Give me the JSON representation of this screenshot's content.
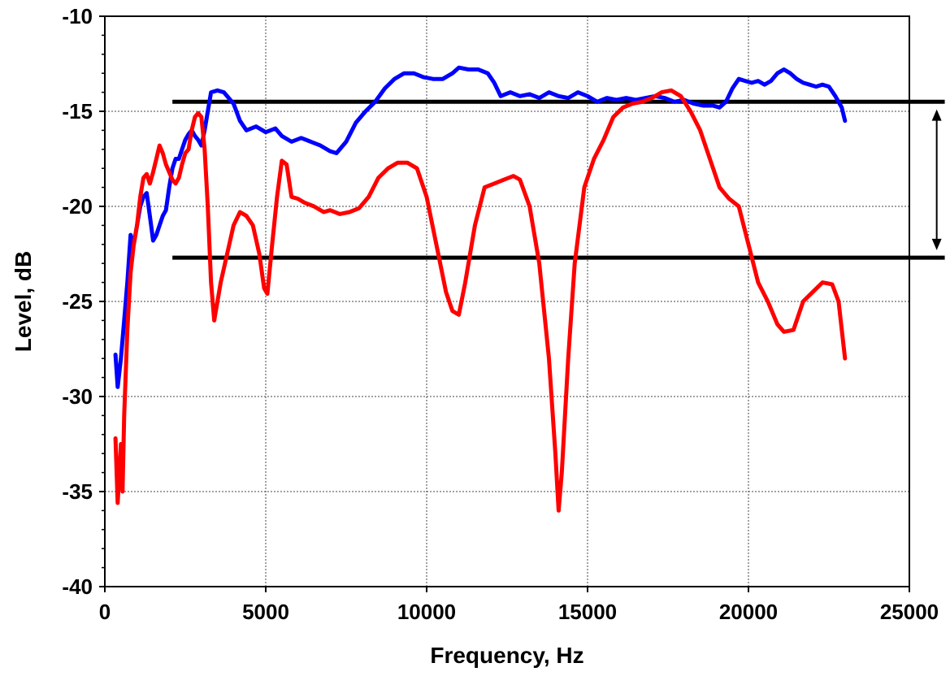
{
  "chart_data": {
    "type": "line",
    "title": "",
    "xlabel": "Frequency, Hz",
    "ylabel": "Level, dB",
    "xlim": [
      0,
      25000
    ],
    "ylim": [
      -40,
      -10
    ],
    "x_ticks": [
      0,
      5000,
      10000,
      15000,
      20000,
      25000
    ],
    "y_ticks": [
      -10,
      -15,
      -20,
      -25,
      -30,
      -35,
      -40
    ],
    "x_tick_labels": [
      "0",
      "5000",
      "10000",
      "15000",
      "20000",
      "25000"
    ],
    "y_tick_labels": [
      "-10",
      "-15",
      "-20",
      "-25",
      "-30",
      "-35",
      "-40"
    ],
    "grid": true,
    "legend": "none",
    "series": [
      {
        "color": "#0000ff",
        "points": [
          [
            330,
            -27.8
          ],
          [
            400,
            -29.5
          ],
          [
            500,
            -28.0
          ],
          [
            600,
            -26.0
          ],
          [
            700,
            -24.0
          ],
          [
            800,
            -21.5
          ],
          [
            900,
            -22.0
          ],
          [
            1000,
            -21.0
          ],
          [
            1100,
            -20.0
          ],
          [
            1200,
            -19.5
          ],
          [
            1300,
            -19.3
          ],
          [
            1400,
            -20.5
          ],
          [
            1500,
            -21.8
          ],
          [
            1600,
            -21.5
          ],
          [
            1700,
            -21.0
          ],
          [
            1800,
            -20.5
          ],
          [
            1900,
            -20.2
          ],
          [
            2000,
            -19.0
          ],
          [
            2100,
            -18.0
          ],
          [
            2200,
            -17.5
          ],
          [
            2300,
            -17.5
          ],
          [
            2400,
            -17.0
          ],
          [
            2500,
            -16.5
          ],
          [
            2600,
            -16.2
          ],
          [
            2700,
            -16.0
          ],
          [
            2800,
            -16.3
          ],
          [
            2900,
            -16.5
          ],
          [
            3000,
            -16.8
          ],
          [
            3100,
            -16.0
          ],
          [
            3200,
            -15.0
          ],
          [
            3300,
            -14.0
          ],
          [
            3500,
            -13.9
          ],
          [
            3700,
            -14.0
          ],
          [
            4000,
            -14.6
          ],
          [
            4200,
            -15.5
          ],
          [
            4400,
            -16.0
          ],
          [
            4700,
            -15.8
          ],
          [
            5000,
            -16.1
          ],
          [
            5300,
            -15.9
          ],
          [
            5500,
            -16.3
          ],
          [
            5800,
            -16.6
          ],
          [
            6100,
            -16.4
          ],
          [
            6400,
            -16.6
          ],
          [
            6700,
            -16.8
          ],
          [
            7000,
            -17.1
          ],
          [
            7200,
            -17.2
          ],
          [
            7500,
            -16.6
          ],
          [
            7800,
            -15.6
          ],
          [
            8100,
            -15.0
          ],
          [
            8400,
            -14.5
          ],
          [
            8700,
            -13.8
          ],
          [
            9000,
            -13.3
          ],
          [
            9300,
            -13.0
          ],
          [
            9600,
            -13.0
          ],
          [
            9900,
            -13.2
          ],
          [
            10200,
            -13.3
          ],
          [
            10500,
            -13.3
          ],
          [
            10800,
            -13.0
          ],
          [
            11000,
            -12.7
          ],
          [
            11300,
            -12.8
          ],
          [
            11600,
            -12.8
          ],
          [
            11900,
            -13.0
          ],
          [
            12100,
            -13.5
          ],
          [
            12300,
            -14.2
          ],
          [
            12600,
            -14.0
          ],
          [
            12900,
            -14.2
          ],
          [
            13200,
            -14.1
          ],
          [
            13500,
            -14.3
          ],
          [
            13800,
            -14.0
          ],
          [
            14100,
            -14.2
          ],
          [
            14400,
            -14.3
          ],
          [
            14700,
            -14.0
          ],
          [
            15000,
            -14.2
          ],
          [
            15300,
            -14.5
          ],
          [
            15600,
            -14.3
          ],
          [
            15900,
            -14.4
          ],
          [
            16200,
            -14.3
          ],
          [
            16500,
            -14.4
          ],
          [
            16800,
            -14.3
          ],
          [
            17100,
            -14.2
          ],
          [
            17400,
            -14.3
          ],
          [
            17700,
            -14.5
          ],
          [
            18000,
            -14.4
          ],
          [
            18300,
            -14.6
          ],
          [
            18600,
            -14.7
          ],
          [
            18900,
            -14.7
          ],
          [
            19100,
            -14.8
          ],
          [
            19300,
            -14.5
          ],
          [
            19500,
            -13.8
          ],
          [
            19700,
            -13.3
          ],
          [
            19900,
            -13.4
          ],
          [
            20100,
            -13.5
          ],
          [
            20300,
            -13.4
          ],
          [
            20500,
            -13.6
          ],
          [
            20700,
            -13.4
          ],
          [
            20900,
            -13.0
          ],
          [
            21100,
            -12.8
          ],
          [
            21300,
            -13.0
          ],
          [
            21500,
            -13.3
          ],
          [
            21700,
            -13.5
          ],
          [
            21900,
            -13.6
          ],
          [
            22100,
            -13.7
          ],
          [
            22300,
            -13.6
          ],
          [
            22500,
            -13.7
          ],
          [
            22700,
            -14.2
          ],
          [
            22900,
            -14.8
          ],
          [
            23000,
            -15.5
          ]
        ]
      },
      {
        "color": "#ff0000",
        "points": [
          [
            330,
            -32.2
          ],
          [
            400,
            -35.6
          ],
          [
            500,
            -32.5
          ],
          [
            550,
            -35.0
          ],
          [
            600,
            -31.0
          ],
          [
            700,
            -26.5
          ],
          [
            800,
            -23.5
          ],
          [
            900,
            -22.0
          ],
          [
            1000,
            -21.0
          ],
          [
            1100,
            -19.5
          ],
          [
            1200,
            -18.5
          ],
          [
            1300,
            -18.3
          ],
          [
            1400,
            -18.8
          ],
          [
            1500,
            -18.2
          ],
          [
            1600,
            -17.5
          ],
          [
            1700,
            -16.8
          ],
          [
            1800,
            -17.2
          ],
          [
            1900,
            -17.8
          ],
          [
            2000,
            -18.2
          ],
          [
            2100,
            -18.6
          ],
          [
            2200,
            -18.8
          ],
          [
            2300,
            -18.5
          ],
          [
            2400,
            -17.8
          ],
          [
            2500,
            -17.2
          ],
          [
            2600,
            -17.0
          ],
          [
            2700,
            -16.0
          ],
          [
            2800,
            -15.3
          ],
          [
            2900,
            -15.1
          ],
          [
            3000,
            -15.3
          ],
          [
            3100,
            -17.0
          ],
          [
            3200,
            -20.0
          ],
          [
            3300,
            -24.0
          ],
          [
            3400,
            -26.0
          ],
          [
            3500,
            -25.0
          ],
          [
            3600,
            -24.0
          ],
          [
            3800,
            -22.5
          ],
          [
            4000,
            -21.0
          ],
          [
            4200,
            -20.3
          ],
          [
            4400,
            -20.5
          ],
          [
            4600,
            -21.0
          ],
          [
            4800,
            -22.5
          ],
          [
            4950,
            -24.3
          ],
          [
            5050,
            -24.6
          ],
          [
            5200,
            -22.0
          ],
          [
            5350,
            -19.5
          ],
          [
            5500,
            -17.6
          ],
          [
            5650,
            -17.8
          ],
          [
            5800,
            -19.5
          ],
          [
            6000,
            -19.6
          ],
          [
            6200,
            -19.8
          ],
          [
            6500,
            -20.0
          ],
          [
            6800,
            -20.3
          ],
          [
            7000,
            -20.2
          ],
          [
            7300,
            -20.4
          ],
          [
            7600,
            -20.3
          ],
          [
            7900,
            -20.1
          ],
          [
            8200,
            -19.5
          ],
          [
            8500,
            -18.5
          ],
          [
            8800,
            -18.0
          ],
          [
            9100,
            -17.7
          ],
          [
            9400,
            -17.7
          ],
          [
            9700,
            -18.0
          ],
          [
            10000,
            -19.5
          ],
          [
            10300,
            -22.0
          ],
          [
            10600,
            -24.5
          ],
          [
            10800,
            -25.5
          ],
          [
            11000,
            -25.7
          ],
          [
            11200,
            -24.0
          ],
          [
            11500,
            -21.0
          ],
          [
            11800,
            -19.0
          ],
          [
            12100,
            -18.8
          ],
          [
            12400,
            -18.6
          ],
          [
            12700,
            -18.4
          ],
          [
            12900,
            -18.6
          ],
          [
            13200,
            -20.0
          ],
          [
            13500,
            -23.0
          ],
          [
            13800,
            -28.0
          ],
          [
            14000,
            -33.0
          ],
          [
            14100,
            -36.0
          ],
          [
            14200,
            -34.0
          ],
          [
            14400,
            -28.0
          ],
          [
            14600,
            -23.0
          ],
          [
            14900,
            -19.0
          ],
          [
            15200,
            -17.5
          ],
          [
            15500,
            -16.5
          ],
          [
            15800,
            -15.3
          ],
          [
            16100,
            -14.8
          ],
          [
            16400,
            -14.6
          ],
          [
            16700,
            -14.5
          ],
          [
            17000,
            -14.3
          ],
          [
            17300,
            -14.0
          ],
          [
            17600,
            -13.9
          ],
          [
            17900,
            -14.2
          ],
          [
            18200,
            -15.0
          ],
          [
            18500,
            -16.0
          ],
          [
            18800,
            -17.5
          ],
          [
            19100,
            -19.0
          ],
          [
            19400,
            -19.6
          ],
          [
            19700,
            -20.0
          ],
          [
            20000,
            -22.0
          ],
          [
            20300,
            -24.0
          ],
          [
            20600,
            -25.0
          ],
          [
            20900,
            -26.2
          ],
          [
            21100,
            -26.6
          ],
          [
            21400,
            -26.5
          ],
          [
            21700,
            -25.0
          ],
          [
            22000,
            -24.5
          ],
          [
            22300,
            -24.0
          ],
          [
            22600,
            -24.1
          ],
          [
            22800,
            -25.0
          ],
          [
            23000,
            -28.0
          ]
        ]
      }
    ],
    "reference_lines": [
      {
        "y": -14.5,
        "x_from": 2100,
        "x_to": 26100,
        "color": "#000000"
      },
      {
        "y": -22.7,
        "x_from": 2100,
        "x_to": 26100,
        "color": "#000000"
      }
    ],
    "double_arrow": {
      "x": 25850,
      "y_from": -14.9,
      "y_to": -22.3,
      "color": "#000000"
    }
  }
}
